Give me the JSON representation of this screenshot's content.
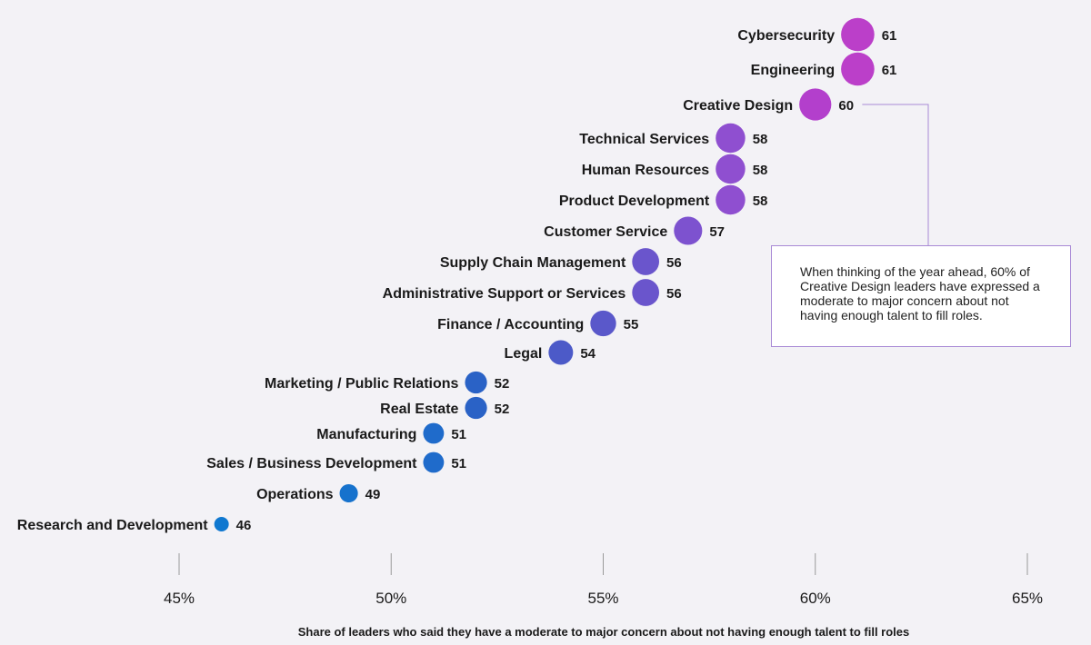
{
  "chart_data": {
    "type": "scatter",
    "xlabel": "Share of leaders who said they have a moderate to major concern about not having enough talent to fill roles",
    "xlim": [
      45,
      65
    ],
    "xticks": [
      {
        "value": 45,
        "label": "45%"
      },
      {
        "value": 50,
        "label": "50%"
      },
      {
        "value": 55,
        "label": "55%"
      },
      {
        "value": 60,
        "label": "60%"
      },
      {
        "value": 65,
        "label": "65%"
      }
    ],
    "points": [
      {
        "category": "Cybersecurity",
        "value": 61,
        "label": "61",
        "color": "#bb3fc9"
      },
      {
        "category": "Engineering",
        "value": 61,
        "label": "61",
        "color": "#bb3fc9"
      },
      {
        "category": "Creative Design",
        "value": 60,
        "label": "60",
        "color": "#b33fcc"
      },
      {
        "category": "Technical Services",
        "value": 58,
        "label": "58",
        "color": "#8f4fd0"
      },
      {
        "category": "Human Resources",
        "value": 58,
        "label": "58",
        "color": "#8f4fd0"
      },
      {
        "category": "Product Development",
        "value": 58,
        "label": "58",
        "color": "#8f4fd0"
      },
      {
        "category": "Customer Service",
        "value": 57,
        "label": "57",
        "color": "#7d52cf"
      },
      {
        "category": "Supply Chain Management",
        "value": 56,
        "label": "56",
        "color": "#6a55cc"
      },
      {
        "category": "Administrative Support or Services",
        "value": 56,
        "label": "56",
        "color": "#6a55cc"
      },
      {
        "category": "Finance / Accounting",
        "value": 55,
        "label": "55",
        "color": "#5a58ca"
      },
      {
        "category": "Legal",
        "value": 54,
        "label": "54",
        "color": "#4c5ac8"
      },
      {
        "category": "Marketing / Public Relations",
        "value": 52,
        "label": "52",
        "color": "#2a62c6"
      },
      {
        "category": "Real Estate",
        "value": 52,
        "label": "52",
        "color": "#2a62c6"
      },
      {
        "category": "Manufacturing",
        "value": 51,
        "label": "51",
        "color": "#1f6bcb"
      },
      {
        "category": "Sales / Business Development",
        "value": 51,
        "label": "51",
        "color": "#1f6bcb"
      },
      {
        "category": "Operations",
        "value": 49,
        "label": "49",
        "color": "#1672cd"
      },
      {
        "category": "Research and Development",
        "value": 46,
        "label": "46",
        "color": "#0f78d0"
      }
    ],
    "annotation": {
      "target": "Creative Design",
      "text": "When thinking of the year ahead, 60% of Creative Design leaders have expressed a moderate to major concern about not having enough talent to fill roles."
    },
    "grid": false,
    "legend": false
  }
}
